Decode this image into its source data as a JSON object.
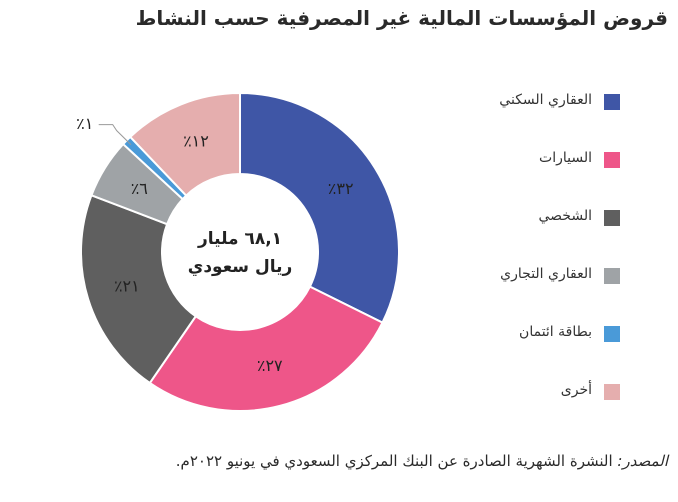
{
  "title": "قروض المؤسسات المالية غير المصرفية حسب النشاط",
  "center_label": {
    "line1": "٦٨,١ مليار",
    "line2": "ريال سعودي"
  },
  "source": {
    "label": "المصدر:",
    "text": "النشرة الشهرية الصادرة عن البنك المركزي السعودي في يونيو ٢٠٢٢م."
  },
  "chart_data": {
    "type": "pie",
    "donut": true,
    "title": "قروض المؤسسات المالية غير المصرفية حسب النشاط",
    "unit": "%",
    "total_label": "٦٨,١ مليار ريال سعودي",
    "legend_position": "right",
    "slices": [
      {
        "name": "العقاري السكني",
        "value": 32,
        "label": "٪٣٢",
        "color": "#3f56a6"
      },
      {
        "name": "السيارات",
        "value": 27,
        "label": "٪٢٧",
        "color": "#ee5689"
      },
      {
        "name": "الشخصي",
        "value": 21,
        "label": "٪٢١",
        "color": "#5f5f5f"
      },
      {
        "name": "العقاري التجاري",
        "value": 6,
        "label": "٪٦",
        "color": "#9fa3a6"
      },
      {
        "name": "بطاقة ائتمان",
        "value": 1,
        "label": "٪١",
        "color": "#4a9ad8"
      },
      {
        "name": "أخرى",
        "value": 12,
        "label": "٪١٢",
        "color": "#e5aeae"
      }
    ]
  }
}
